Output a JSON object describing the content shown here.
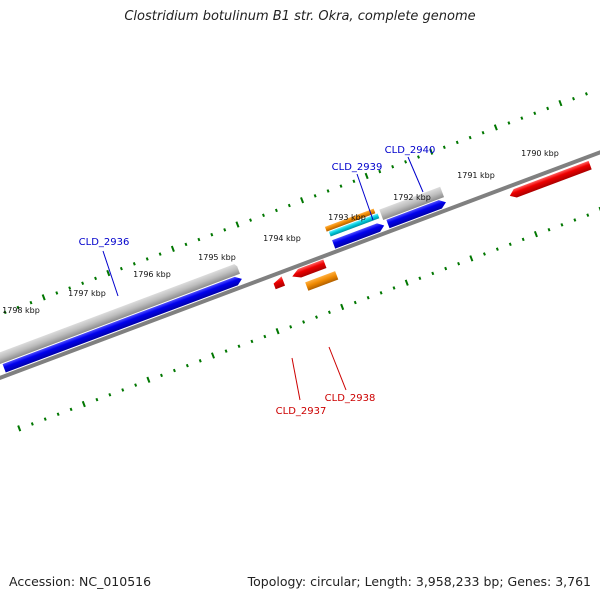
{
  "title": "Clostridium botulinum B1 str. Okra, complete genome",
  "footer": {
    "accession_label": "Accession: NC_010516",
    "summary": "Topology: circular; Length: 3,958,233 bp; Genes: 3,761"
  },
  "scale_labels": [
    "1790 kbp",
    "1791 kbp",
    "1792 kbp",
    "1793 kbp",
    "1794 kbp",
    "1795 kbp",
    "1796 kbp",
    "1797 kbp",
    "1798 kbp"
  ],
  "gene_labels": [
    {
      "id": "CLD_2936",
      "strand": "forward",
      "color": "#0000cc"
    },
    {
      "id": "CLD_2939",
      "strand": "forward",
      "color": "#0000cc"
    },
    {
      "id": "CLD_2940",
      "strand": "forward",
      "color": "#0000cc"
    },
    {
      "id": "CLD_2937",
      "strand": "reverse",
      "color": "#cc0000"
    },
    {
      "id": "CLD_2938",
      "strand": "reverse",
      "color": "#cc0000"
    }
  ],
  "colors": {
    "forward_gene": "#0000ee",
    "reverse_gene": "#ee0000",
    "rna_orange": "#ee8800",
    "rna_cyan": "#00c8d8",
    "gray_feature": "#b8b8b8",
    "backbone": "#808080",
    "ticks": "#007700"
  }
}
